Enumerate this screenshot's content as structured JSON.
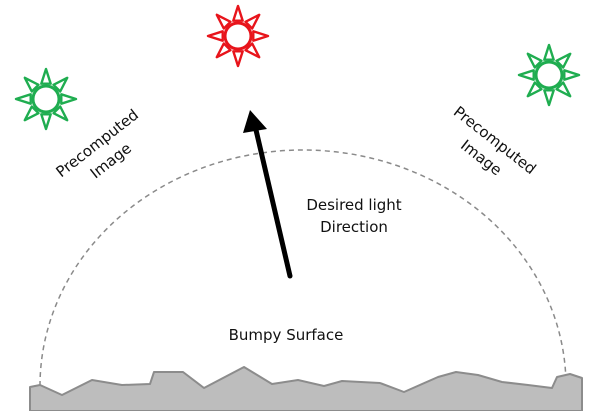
{
  "labels": {
    "precomputed_left": {
      "line1": "Precomputed",
      "line2": "Image"
    },
    "precomputed_right": {
      "line1": "Precomputed",
      "line2": "Image"
    },
    "desired_light": {
      "line1": "Desired light",
      "line2": "Direction"
    },
    "bumpy_surface": "Bumpy Surface"
  },
  "colors": {
    "desired_sun": "#e8141b",
    "precomputed_sun": "#1fad50",
    "arrow": "#000000",
    "dome": "#8a8a8a",
    "surface_fill": "#bdbdbd",
    "surface_edge": "#8c8c8c"
  },
  "icons": {
    "desired_sun": "sun-icon",
    "precomputed_sun_left": "sun-icon",
    "precomputed_sun_right": "sun-icon"
  }
}
